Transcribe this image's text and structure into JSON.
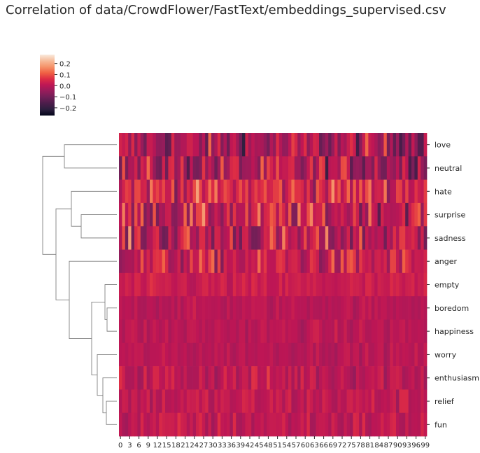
{
  "title": "Correlation of data/CrowdFlower/FastText/embeddings_supervised.csv",
  "chart_data": {
    "type": "heatmap",
    "title": "Correlation of data/CrowdFlower/FastText/embeddings_supervised.csv",
    "rows": [
      "love",
      "neutral",
      "hate",
      "surprise",
      "sadness",
      "anger",
      "empty",
      "boredom",
      "happiness",
      "worry",
      "enthusiasm",
      "relief",
      "fun"
    ],
    "columns_count": 100,
    "x_tick_labels": [
      "0",
      "3",
      "6",
      "9",
      "12",
      "15",
      "18",
      "21",
      "24",
      "27",
      "30",
      "33",
      "36",
      "39",
      "42",
      "45",
      "48",
      "51",
      "54",
      "57",
      "60",
      "63",
      "66",
      "69",
      "72",
      "75",
      "78",
      "81",
      "84",
      "87",
      "90",
      "93",
      "96",
      "99"
    ],
    "colorbar": {
      "ticks": [
        0.2,
        0.1,
        0.0,
        -0.1,
        -0.2
      ],
      "tick_labels": [
        "0.2",
        "0.1",
        "0.0",
        "−0.1",
        "−0.2"
      ],
      "vmin": -0.27,
      "vmax": 0.28
    },
    "row_amplitude": {
      "love": 0.24,
      "neutral": 0.24,
      "hate": 0.2,
      "surprise": 0.23,
      "sadness": 0.25,
      "anger": 0.18,
      "empty": 0.07,
      "boredom": 0.05,
      "happiness": 0.06,
      "worry": 0.05,
      "enthusiasm": 0.11,
      "relief": 0.09,
      "fun": 0.1
    },
    "row_bias": {
      "love": -0.03,
      "neutral": -0.02,
      "hate": 0.05,
      "surprise": 0.02,
      "sadness": 0.0,
      "anger": 0.02,
      "empty": 0.02,
      "boredom": 0.0,
      "happiness": 0.0,
      "worry": 0.0,
      "enthusiasm": 0.01,
      "relief": 0.01,
      "fun": 0.01
    },
    "dendrogram": "hierarchical clustering of rows, shown at left",
    "grid": false
  },
  "colors": {
    "cmap": [
      "#03051a",
      "#2c1e3e",
      "#4c1d4b",
      "#701f57",
      "#961c5b",
      "#bd1655",
      "#dd2c45",
      "#f06043",
      "#f5936a",
      "#f6bb9a",
      "#faebdd"
    ],
    "dendrogram": "#808080",
    "text": "#262626"
  }
}
